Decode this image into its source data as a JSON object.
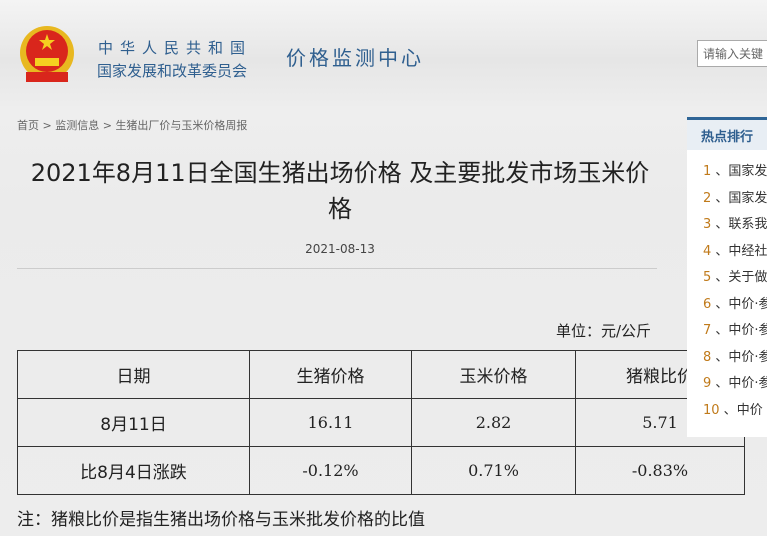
{
  "header": {
    "org_line1": "中华人民共和国",
    "org_line2": "国家发展和改革委员会",
    "site_name": "价格监测中心",
    "search_placeholder": "请输入关键"
  },
  "breadcrumb": [
    "首页",
    "监测信息",
    "生猪出厂价与玉米价格周报"
  ],
  "article": {
    "title": "2021年8月11日全国生猪出场价格 及主要批发市场玉米价格",
    "date": "2021-08-13",
    "unit": "单位：元/公斤",
    "table": {
      "headers": [
        "日期",
        "生猪价格",
        "玉米价格",
        "猪粮比价"
      ],
      "rows": [
        [
          "8月11日",
          "16.11",
          "2.82",
          "5.71"
        ],
        [
          "比8月4日涨跌",
          "-0.12%",
          "0.71%",
          "-0.83%"
        ]
      ]
    },
    "note": "注：猪粮比价是指生猪出场价格与玉米批发价格的比值"
  },
  "hot": {
    "title": "热点排行",
    "items": [
      {
        "num": "1",
        "label": "国家发"
      },
      {
        "num": "2",
        "label": "国家发"
      },
      {
        "num": "3",
        "label": "联系我"
      },
      {
        "num": "4",
        "label": "中经社"
      },
      {
        "num": "5",
        "label": "关于做"
      },
      {
        "num": "6",
        "label": "中价·参"
      },
      {
        "num": "7",
        "label": "中价·参"
      },
      {
        "num": "8",
        "label": "中价·参"
      },
      {
        "num": "9",
        "label": "中价·参"
      },
      {
        "num": "10",
        "label": "中价"
      }
    ]
  }
}
